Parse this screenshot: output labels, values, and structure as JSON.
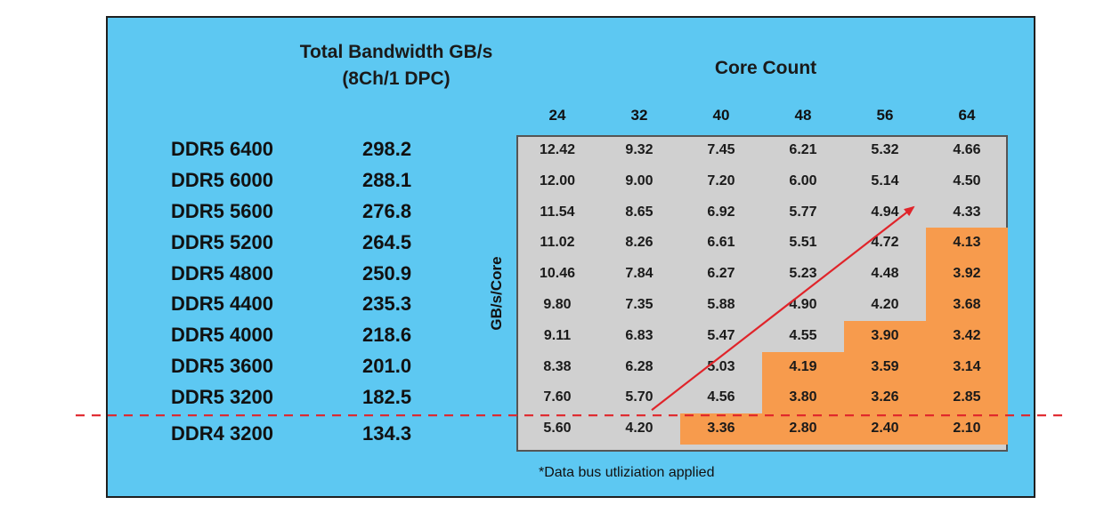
{
  "chart_data": {
    "type": "table",
    "title": "Total Bandwidth GB/s",
    "subtitle": "(8Ch/1 DPC)",
    "column_header": "Core Count",
    "row_axis_label": "GB/s/Core",
    "cores": [
      "24",
      "32",
      "40",
      "48",
      "56",
      "64"
    ],
    "rows": [
      {
        "memory": "DDR5 6400",
        "bandwidth": "298.2",
        "per_core": [
          "12.42",
          "9.32",
          "7.45",
          "6.21",
          "5.32",
          "4.66"
        ],
        "highlight_from": 6
      },
      {
        "memory": "DDR5 6000",
        "bandwidth": "288.1",
        "per_core": [
          "12.00",
          "9.00",
          "7.20",
          "6.00",
          "5.14",
          "4.50"
        ],
        "highlight_from": 6
      },
      {
        "memory": "DDR5 5600",
        "bandwidth": "276.8",
        "per_core": [
          "11.54",
          "8.65",
          "6.92",
          "5.77",
          "4.94",
          "4.33"
        ],
        "highlight_from": 6
      },
      {
        "memory": "DDR5 5200",
        "bandwidth": "264.5",
        "per_core": [
          "11.02",
          "8.26",
          "6.61",
          "5.51",
          "4.72",
          "4.13"
        ],
        "highlight_from": 5
      },
      {
        "memory": "DDR5 4800",
        "bandwidth": "250.9",
        "per_core": [
          "10.46",
          "7.84",
          "6.27",
          "5.23",
          "4.48",
          "3.92"
        ],
        "highlight_from": 5
      },
      {
        "memory": "DDR5 4400",
        "bandwidth": "235.3",
        "per_core": [
          "9.80",
          "7.35",
          "5.88",
          "4.90",
          "4.20",
          "3.68"
        ],
        "highlight_from": 5
      },
      {
        "memory": "DDR5 4000",
        "bandwidth": "218.6",
        "per_core": [
          "9.11",
          "6.83",
          "5.47",
          "4.55",
          "3.90",
          "3.42"
        ],
        "highlight_from": 4
      },
      {
        "memory": "DDR5 3600",
        "bandwidth": "201.0",
        "per_core": [
          "8.38",
          "6.28",
          "5.03",
          "4.19",
          "3.59",
          "3.14"
        ],
        "highlight_from": 3
      },
      {
        "memory": "DDR5 3200",
        "bandwidth": "182.5",
        "per_core": [
          "7.60",
          "5.70",
          "4.56",
          "3.80",
          "3.26",
          "2.85"
        ],
        "highlight_from": 3
      },
      {
        "memory": "DDR4 3200",
        "bandwidth": "134.3",
        "per_core": [
          "5.60",
          "4.20",
          "3.36",
          "2.80",
          "2.40",
          "2.10"
        ],
        "highlight_from": 2
      }
    ],
    "threshold_line": {
      "between_rows": [
        "DDR5 3200",
        "DDR4 3200"
      ],
      "style": "dashed",
      "color": "#e0242a"
    },
    "trend_arrow": {
      "from": {
        "row": "DDR4 3200",
        "core": "32"
      },
      "to": {
        "row": "DDR5 5600",
        "core": "56"
      },
      "color": "#e0242a"
    },
    "highlight_color": "#f79b4d",
    "footnote": "*Data bus utliziation applied"
  }
}
